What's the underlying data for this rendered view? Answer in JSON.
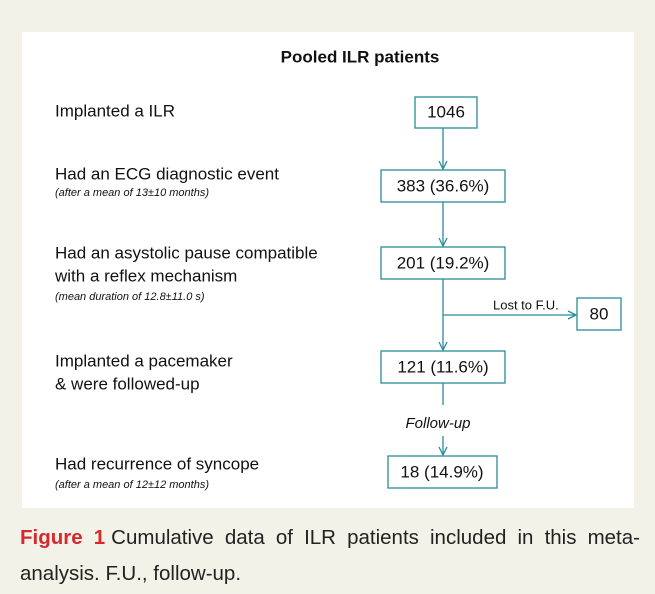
{
  "title": "Pooled ILR patients",
  "steps": [
    {
      "lines": [
        "Implanted a ILR"
      ],
      "box": "1046"
    },
    {
      "lines": [
        "Had an ECG diagnostic event"
      ],
      "note": "(after a mean of 13±10 months)",
      "box": "383 (36.6%)"
    },
    {
      "lines": [
        "Had an asystolic pause compatible",
        "with a reflex mechanism"
      ],
      "note": "(mean duration of 12.8±11.0 s)",
      "box": "201 (19.2%)"
    },
    {
      "lines": [
        "Implanted a pacemaker",
        "& were followed-up"
      ],
      "box": "121 (11.6%)"
    },
    {
      "lines": [
        "Had recurrence of syncope"
      ],
      "note": "(after a mean of 12±12 months)",
      "box": "18 (14.9%)"
    }
  ],
  "branch": {
    "label": "Lost to F.U.",
    "box": "80"
  },
  "follow_up_label": "Follow-up",
  "caption": {
    "figure_label": "Figure 1",
    "text": "Cumulative data of ILR patients included in this meta-analysis. F.U., follow-up."
  }
}
